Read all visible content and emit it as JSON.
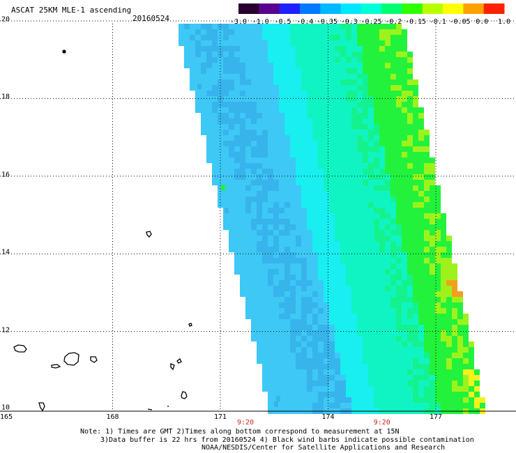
{
  "header": {
    "title": "ASCAT 25KM MLE-1 ascending",
    "date": "20160524"
  },
  "colorbar": {
    "labels": [
      "-3.0",
      "-1.0",
      "-0.5",
      "-0.4",
      "-0.35",
      "-0.3",
      "-0.25",
      "-0.2",
      "-0.15",
      "-0.1",
      "-0.05",
      "0.0",
      "1.0"
    ],
    "colors": [
      "#2a0030",
      "#5a0090",
      "#2020ff",
      "#0078ff",
      "#00b8ff",
      "#00e8ff",
      "#00ffd8",
      "#00ff70",
      "#30ff00",
      "#b8ff00",
      "#ffff00",
      "#ffa000",
      "#ff2000"
    ]
  },
  "axes": {
    "lat_labels": [
      "20",
      "18",
      "16",
      "14",
      "12",
      "10"
    ],
    "lat_values": [
      20,
      18,
      16,
      14,
      12,
      10
    ],
    "lon_labels": [
      "165",
      "168",
      "171",
      "174",
      "177"
    ],
    "lon_values": [
      165,
      168,
      171,
      174,
      177
    ],
    "time_labels": [
      "9:20",
      "9:20"
    ],
    "time_lon": [
      171.7,
      175.5
    ]
  },
  "swath_colors": {
    "deep": "#37b4ec",
    "mid": "#3ec8f6",
    "cyan": "#19eef0",
    "aqua": "#10f4c4",
    "mint": "#14f28e",
    "green": "#22f23c",
    "lime": "#9ef21c",
    "yellow": "#f2f21c",
    "orange": "#f2a01c"
  },
  "notes": {
    "line1": "Note: 1) Times are GMT 2)Times along bottom correspond to measurement at 15N",
    "line2": "3)Data buffer is 22 hrs from 20160524 4) Black wind barbs indicate possible contamination",
    "line3": "NOAA/NESDIS/Center for Satellite Applications and Research"
  }
}
